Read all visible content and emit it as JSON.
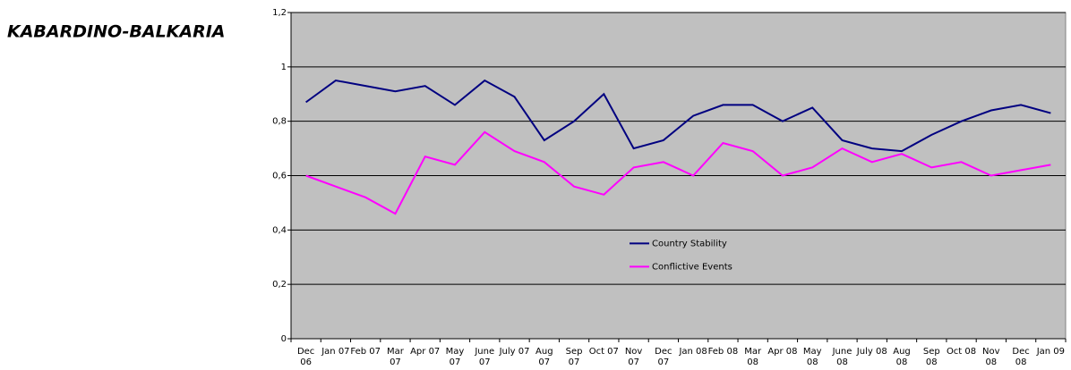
{
  "chart_data": {
    "type": "line",
    "title": "KABARDINO-BALKARIA",
    "categories": [
      "Dec 06",
      "Jan 07",
      "Feb 07",
      "Mar 07",
      "Apr 07",
      "May 07",
      "June 07",
      "July 07",
      "Aug 07",
      "Sep 07",
      "Oct 07",
      "Nov 07",
      "Dec 07",
      "Jan 08",
      "Feb 08",
      "Mar 08",
      "Apr 08",
      "May 08",
      "June 08",
      "July 08",
      "Aug 08",
      "Sep 08",
      "Oct 08",
      "Nov 08",
      "Dec 08",
      "Jan 09"
    ],
    "series": [
      {
        "name": "Country Stability",
        "color": "#000080",
        "values": [
          0.87,
          0.95,
          0.93,
          0.91,
          0.93,
          0.86,
          0.95,
          0.89,
          0.73,
          0.8,
          0.9,
          0.7,
          0.73,
          0.82,
          0.86,
          0.86,
          0.8,
          0.85,
          0.73,
          0.7,
          0.69,
          0.75,
          0.8,
          0.84,
          0.86,
          0.83
        ]
      },
      {
        "name": "Conflictive Events",
        "color": "#ff00ff",
        "values": [
          0.6,
          0.56,
          0.52,
          0.46,
          0.67,
          0.64,
          0.76,
          0.69,
          0.65,
          0.56,
          0.53,
          0.63,
          0.65,
          0.6,
          0.72,
          0.69,
          0.6,
          0.63,
          0.7,
          0.65,
          0.68,
          0.63,
          0.65,
          0.6,
          0.62,
          0.64
        ]
      }
    ],
    "ylim": [
      0,
      1.2
    ],
    "yticks": [
      0,
      {
        "value": 0.2,
        "label": "0,2"
      },
      {
        "value": 0.4,
        "label": "0,4"
      },
      {
        "value": 0.6,
        "label": "0,6"
      },
      {
        "value": 0.8,
        "label": "0,8"
      },
      1,
      {
        "value": 1.2,
        "label": "1,2"
      }
    ],
    "grid": true,
    "plot_background": "#c0c0c0",
    "legend": "center"
  }
}
